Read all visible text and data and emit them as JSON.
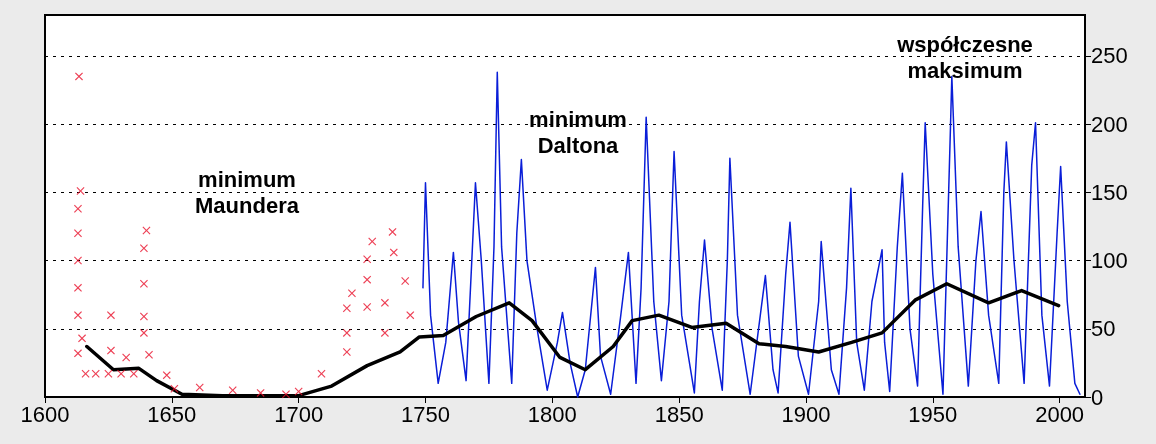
{
  "chart_data": {
    "type": "line",
    "xlim": [
      1600,
      2010
    ],
    "xticks": [
      1600,
      1650,
      1700,
      1750,
      1800,
      1850,
      1900,
      1950,
      2000
    ],
    "ylim": [
      0,
      280
    ],
    "yticks": [
      0,
      50,
      100,
      150,
      200,
      250
    ],
    "grid": "y",
    "line_style": "solid",
    "annotations": [
      "minimum\nMaundera",
      "minimum\nDaltona",
      "współczesne\nmaksimum"
    ],
    "series": [
      {
        "type": "scatter",
        "marker": "cross",
        "color": "#e8102a",
        "x": [
          1613.4,
          1614,
          1613,
          1613,
          1613,
          1613,
          1613,
          1613,
          1614.6,
          1616,
          1620,
          1625,
          1630,
          1635,
          1626,
          1626,
          1632,
          1639,
          1639,
          1639,
          1639,
          1640,
          1641,
          1648,
          1651,
          1661,
          1674,
          1685,
          1695,
          1700,
          1709,
          1719,
          1719,
          1719,
          1721,
          1727,
          1727,
          1727,
          1729,
          1734,
          1734,
          1737,
          1737.5,
          1742,
          1744
        ],
        "values": [
          235,
          151,
          138,
          120,
          100,
          80,
          60,
          32,
          43,
          17,
          17,
          17,
          17,
          17,
          60,
          34,
          29,
          109,
          83,
          59,
          47,
          122,
          31,
          16,
          6,
          7,
          5,
          3,
          2,
          4,
          17,
          65,
          47,
          33,
          76,
          101,
          86,
          66,
          114,
          69,
          47,
          121,
          106,
          85,
          60
        ]
      },
      {
        "marker": "none",
        "color": "#0a1ed8",
        "x": [
          1749,
          1750,
          1752,
          1755,
          1758,
          1761,
          1763,
          1766,
          1768,
          1769.7,
          1772,
          1775,
          1777,
          1778.3,
          1780,
          1784,
          1786,
          1787.8,
          1790,
          1794,
          1798,
          1802,
          1804,
          1807,
          1810,
          1813,
          1817,
          1819,
          1823,
          1827,
          1830,
          1833,
          1835,
          1837,
          1840,
          1843,
          1846,
          1848,
          1851,
          1856,
          1858,
          1860,
          1863,
          1867,
          1869,
          1870,
          1873,
          1878,
          1882,
          1884,
          1887,
          1889,
          1892,
          1893.7,
          1897,
          1901,
          1905,
          1906,
          1910,
          1913,
          1916,
          1917.7,
          1920,
          1923,
          1926,
          1930,
          1931,
          1933,
          1936,
          1938,
          1941,
          1944,
          1946,
          1947,
          1950,
          1954,
          1957,
          1957.5,
          1960,
          1964,
          1967,
          1969,
          1972,
          1976,
          1978,
          1979,
          1982,
          1986,
          1989,
          1990.5,
          1993,
          1996,
          1999,
          2000.4,
          2003,
          2006,
          2008
        ],
        "values": [
          80,
          157,
          60,
          10,
          40,
          106,
          55,
          12,
          90,
          157,
          100,
          10,
          110,
          238,
          110,
          10,
          120,
          174,
          100,
          50,
          5,
          40,
          62,
          25,
          0,
          20,
          95,
          30,
          2,
          60,
          106,
          10,
          80,
          205,
          70,
          12,
          70,
          180,
          60,
          3,
          70,
          115,
          50,
          5,
          100,
          175,
          60,
          2,
          60,
          89,
          20,
          3,
          90,
          128,
          30,
          2,
          70,
          114,
          20,
          2,
          80,
          153,
          40,
          5,
          70,
          108,
          40,
          4,
          110,
          164,
          50,
          8,
          140,
          201,
          90,
          2,
          200,
          235,
          110,
          8,
          100,
          136,
          60,
          10,
          150,
          187,
          100,
          10,
          170,
          201,
          60,
          8,
          120,
          169,
          70,
          10,
          2
        ]
      },
      {
        "marker": "none",
        "color": "#000000",
        "x": [
          1616.5,
          1627,
          1637,
          1644,
          1654,
          1670,
          1700,
          1713,
          1727,
          1740,
          1747.6,
          1757,
          1770,
          1783,
          1792,
          1803,
          1813,
          1824,
          1831.5,
          1842,
          1855,
          1868.5,
          1881.5,
          1892,
          1905,
          1918,
          1930,
          1943,
          1955.5,
          1972,
          1985,
          1999.6
        ],
        "values": [
          37,
          20,
          21,
          12,
          2,
          1,
          1,
          8,
          23,
          33,
          44,
          45,
          59,
          69,
          56,
          29,
          20,
          37,
          56,
          60,
          51,
          54,
          39,
          37,
          33,
          40,
          47,
          71,
          83,
          69,
          78,
          67
        ]
      }
    ]
  }
}
